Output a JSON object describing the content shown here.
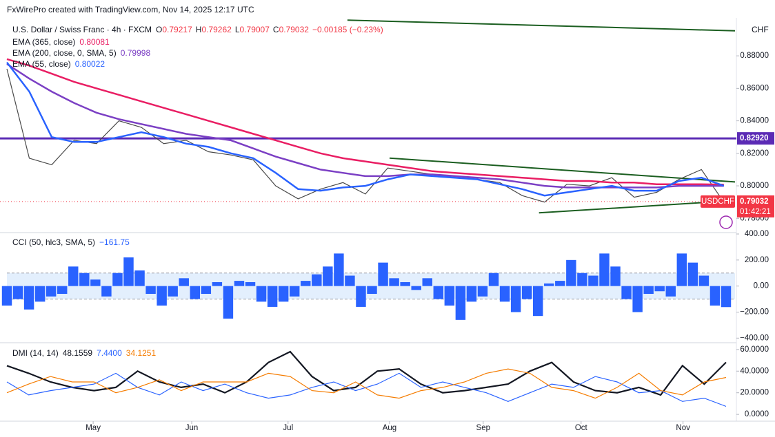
{
  "header": {
    "watermark": "FxWirePro created with TradingView.com, Nov 14, 2025 12:17 UTC"
  },
  "chart_data": [
    {
      "type": "line",
      "title": "U.S. Dollar / Swiss Franc · 4h · FXCM",
      "ohlc": [
        {
          "label": "O",
          "value": 0.79217
        },
        {
          "label": "H",
          "value": 0.79262
        },
        {
          "label": "L",
          "value": 0.79007
        },
        {
          "label": "C",
          "value": 0.79032
        }
      ],
      "change": "−0.00185 (−0.23%)",
      "unit": "CHF",
      "symbol": "USDCHF",
      "countdown": "01:42:21",
      "last_price": 0.79032,
      "x": [
        0,
        1,
        2,
        3,
        4,
        5,
        6,
        7,
        8,
        9,
        10,
        11,
        12,
        13,
        14,
        15,
        16,
        17,
        18,
        19,
        20,
        21,
        22,
        23,
        24,
        25,
        26,
        27,
        28,
        29,
        30,
        31,
        32
      ],
      "xlim": [
        0,
        32.5
      ],
      "xticks": [
        {
          "value": 3.85,
          "label": "May"
        },
        {
          "value": 8.25,
          "label": "Jun"
        },
        {
          "value": 12.55,
          "label": "Jul"
        },
        {
          "value": 17.08,
          "label": "Aug"
        },
        {
          "value": 21.26,
          "label": "Sep"
        },
        {
          "value": 25.63,
          "label": "Oct"
        },
        {
          "value": 30.18,
          "label": "Nov"
        }
      ],
      "ylim": [
        0.7725,
        0.9025
      ],
      "yticks": [
        {
          "value": 0.78,
          "label": "0.78000"
        },
        {
          "value": 0.8,
          "label": "0.80000"
        },
        {
          "value": 0.82,
          "label": "0.82000"
        },
        {
          "value": 0.84,
          "label": "0.84000"
        },
        {
          "value": 0.86,
          "label": "0.86000"
        },
        {
          "value": 0.88,
          "label": "0.88000"
        }
      ],
      "series": [
        {
          "color": "#4a4a4a",
          "values": [
            0.872,
            0.817,
            0.813,
            0.828,
            0.826,
            0.84,
            0.836,
            0.826,
            0.828,
            0.821,
            0.819,
            0.816,
            0.8,
            0.792,
            0.798,
            0.802,
            0.795,
            0.811,
            0.809,
            0.807,
            0.805,
            0.804,
            0.802,
            0.794,
            0.79,
            0.801,
            0.8,
            0.805,
            0.793,
            0.796,
            0.804,
            0.81,
            0.79
          ]
        },
        {
          "name": "EMA (365, close)",
          "last": 0.80081,
          "color": "#e91e63",
          "values": [
            0.878,
            0.874,
            0.869,
            0.864,
            0.86,
            0.856,
            0.852,
            0.848,
            0.844,
            0.84,
            0.836,
            0.832,
            0.828,
            0.824,
            0.82,
            0.817,
            0.815,
            0.813,
            0.811,
            0.809,
            0.808,
            0.807,
            0.806,
            0.805,
            0.804,
            0.803,
            0.803,
            0.802,
            0.802,
            0.801,
            0.801,
            0.801,
            0.8008
          ]
        },
        {
          "name": "EMA (200, close, 0, SMA, 5)",
          "last": 0.79998,
          "color": "#7b3fc4",
          "values": [
            0.875,
            0.866,
            0.858,
            0.851,
            0.845,
            0.841,
            0.838,
            0.835,
            0.832,
            0.83,
            0.828,
            0.823,
            0.818,
            0.814,
            0.81,
            0.808,
            0.806,
            0.806,
            0.807,
            0.807,
            0.806,
            0.805,
            0.804,
            0.802,
            0.8,
            0.799,
            0.799,
            0.799,
            0.799,
            0.799,
            0.8,
            0.8,
            0.8
          ]
        },
        {
          "name": "EMA (55, close)",
          "last": 0.80022,
          "color": "#2962ff",
          "values": [
            0.876,
            0.858,
            0.83,
            0.827,
            0.827,
            0.83,
            0.833,
            0.83,
            0.826,
            0.824,
            0.82,
            0.817,
            0.808,
            0.798,
            0.797,
            0.799,
            0.8,
            0.804,
            0.807,
            0.806,
            0.805,
            0.804,
            0.801,
            0.798,
            0.794,
            0.796,
            0.798,
            0.8,
            0.797,
            0.797,
            0.803,
            0.805,
            0.8
          ]
        }
      ],
      "levels": [
        {
          "value": 0.8292,
          "label": "0.82920",
          "color": "#5b2bb5"
        }
      ],
      "lines": [
        {
          "color": "#1b5e20",
          "x": [
            15.2,
            32.5
          ],
          "y": [
            0.902,
            0.8954
          ]
        },
        {
          "color": "#1b5e20",
          "x": [
            17.08,
            32.5
          ],
          "y": [
            0.8171,
            0.8024
          ]
        },
        {
          "color": "#1b5e20",
          "x": [
            23.75,
            32.0
          ],
          "y": [
            0.7834,
            0.7905
          ]
        }
      ],
      "grid": false
    },
    {
      "type": "bar",
      "title": "CCI (50, hlc3, SMA, 5)",
      "legend_value": "−161.75",
      "color": "#2962ff",
      "values": [
        -150,
        -100,
        -180,
        -120,
        -80,
        -60,
        150,
        100,
        50,
        -80,
        100,
        220,
        120,
        -60,
        -150,
        -80,
        60,
        -100,
        -60,
        30,
        -250,
        40,
        30,
        -120,
        -160,
        -120,
        -80,
        40,
        90,
        150,
        250,
        80,
        -160,
        -60,
        180,
        60,
        30,
        -30,
        60,
        -100,
        -150,
        -260,
        -120,
        -80,
        100,
        -120,
        -200,
        -100,
        -230,
        20,
        40,
        200,
        100,
        80,
        250,
        150,
        -100,
        -200,
        -60,
        -40,
        -80,
        250,
        180,
        80,
        -150,
        -161.75
      ],
      "ylim": [
        -430,
        400
      ],
      "yticks": [
        {
          "value": -400,
          "label": "−400.00"
        },
        {
          "value": -200,
          "label": "−200.00"
        },
        {
          "value": 0,
          "label": "0.00"
        },
        {
          "value": 200,
          "label": "200.00"
        },
        {
          "value": 400,
          "label": "400.00"
        }
      ],
      "bands": [
        -100,
        100
      ]
    },
    {
      "type": "line",
      "title": "DMI (14, 14)",
      "ylim": [
        -5,
        65
      ],
      "yticks": [
        {
          "value": 0,
          "label": "0.0000"
        },
        {
          "value": 20,
          "label": "20.0000"
        },
        {
          "value": 40,
          "label": "40.0000"
        },
        {
          "value": 60,
          "label": "60.0000"
        }
      ],
      "series": [
        {
          "legend_label": "48.1559",
          "color": "#131722",
          "values": [
            45,
            38,
            30,
            25,
            22,
            25,
            40,
            30,
            25,
            28,
            20,
            30,
            48,
            58,
            35,
            22,
            25,
            40,
            42,
            28,
            20,
            22,
            25,
            28,
            40,
            48,
            30,
            22,
            20,
            25,
            18,
            45,
            28,
            48.1559
          ]
        },
        {
          "legend_label": "7.4400",
          "color": "#2962ff",
          "values": [
            30,
            18,
            22,
            25,
            28,
            38,
            25,
            18,
            30,
            22,
            28,
            20,
            15,
            18,
            25,
            30,
            22,
            28,
            38,
            25,
            30,
            25,
            20,
            12,
            20,
            28,
            25,
            35,
            30,
            20,
            22,
            12,
            15,
            7.44
          ]
        },
        {
          "legend_label": "34.1251",
          "color": "#f57c00",
          "values": [
            20,
            28,
            35,
            30,
            30,
            20,
            25,
            32,
            22,
            30,
            30,
            30,
            38,
            35,
            22,
            20,
            30,
            18,
            15,
            22,
            25,
            30,
            38,
            42,
            38,
            25,
            22,
            15,
            25,
            38,
            22,
            18,
            30,
            34.1251
          ]
        }
      ]
    }
  ]
}
